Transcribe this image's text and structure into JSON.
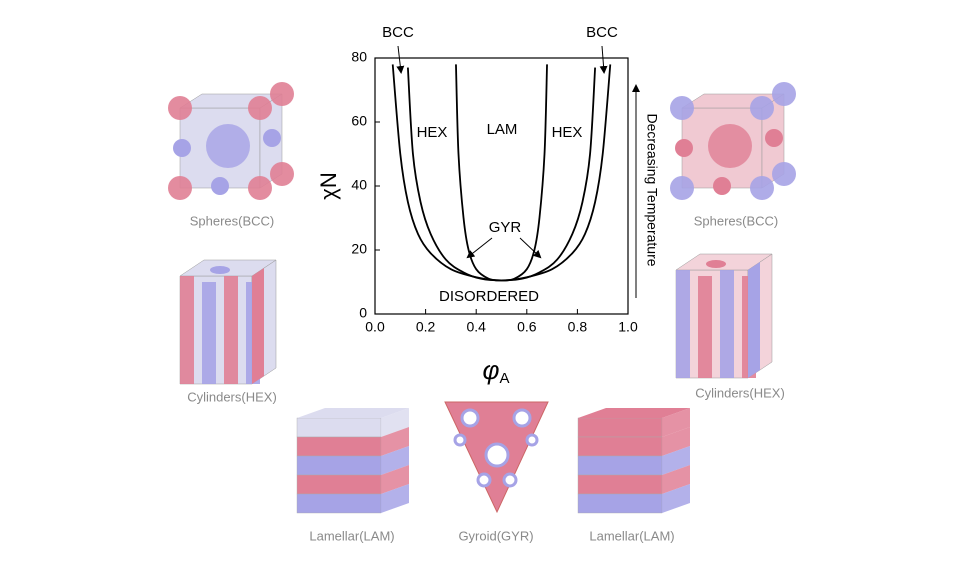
{
  "chart_data": {
    "type": "line",
    "x_label": {
      "symbol": "φ",
      "subscript": "A"
    },
    "y_label": "χN",
    "side_label": "Decreasing Temperature",
    "annotations": [
      "BCC",
      "BCC",
      "HEX",
      "LAM",
      "HEX",
      "GYR",
      "DISORDERED"
    ],
    "xlim": [
      0,
      1
    ],
    "ylim": [
      0,
      80
    ],
    "xticks": [
      {
        "value": 0,
        "label": "0.0"
      },
      0.2,
      0.4,
      0.6,
      0.8,
      {
        "value": 1,
        "label": "1.0"
      }
    ],
    "yticks": [
      0,
      20,
      40,
      60,
      80
    ],
    "series": [
      {
        "color": "#000000",
        "x": [
          0.07,
          0.1,
          0.13,
          0.17,
          0.22,
          0.3,
          0.4,
          0.5,
          0.6,
          0.7,
          0.78,
          0.83,
          0.87,
          0.9,
          0.93
        ],
        "values": [
          78,
          50,
          35,
          25,
          19,
          14,
          11.5,
          10.5,
          11.5,
          14,
          19,
          25,
          35,
          50,
          78
        ]
      },
      {
        "color": "#000000",
        "x": [
          0.13,
          0.15,
          0.18,
          0.22,
          0.28,
          0.35,
          0.42,
          0.5,
          0.58,
          0.65,
          0.72,
          0.78,
          0.82,
          0.85,
          0.87
        ],
        "values": [
          77,
          50,
          35,
          25,
          17,
          13,
          11,
          10.5,
          11,
          13,
          17,
          25,
          35,
          50,
          77
        ]
      },
      {
        "color": "#000000",
        "x": [
          0.32,
          0.33,
          0.35,
          0.37,
          0.4,
          0.45,
          0.5,
          0.55,
          0.6,
          0.63,
          0.65,
          0.67,
          0.68
        ],
        "values": [
          78,
          50,
          30,
          20,
          14,
          11,
          10.5,
          11,
          14,
          20,
          30,
          50,
          78
        ]
      }
    ]
  },
  "illustrations": [
    {
      "caption": "Spheres(BCC)"
    },
    {
      "caption": "Spheres(BCC)"
    },
    {
      "caption": "Cylinders(HEX)"
    },
    {
      "caption": "Cylinders(HEX)"
    },
    {
      "caption": "Lamellar(LAM)"
    },
    {
      "caption": "Gyroid(GYR)"
    },
    {
      "caption": "Lamellar(LAM)"
    }
  ]
}
